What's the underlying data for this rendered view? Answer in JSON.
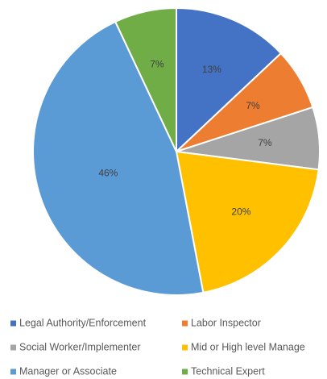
{
  "chart_data": {
    "type": "pie",
    "categories": [
      "Legal Authority/Enforcement",
      "Labor Inspector",
      "Social Worker/Implementer",
      "Mid or High level Manage",
      "Manager or Associate",
      "Technical Expert"
    ],
    "values": [
      13,
      7,
      7,
      20,
      46,
      7
    ],
    "value_labels": [
      "13%",
      "7%",
      "7%",
      "20%",
      "46%",
      "7%"
    ],
    "colors": [
      "#4472c4",
      "#ed7d31",
      "#a5a5a5",
      "#ffc000",
      "#5b9bd5",
      "#70ad47"
    ],
    "legend": "bottom"
  }
}
